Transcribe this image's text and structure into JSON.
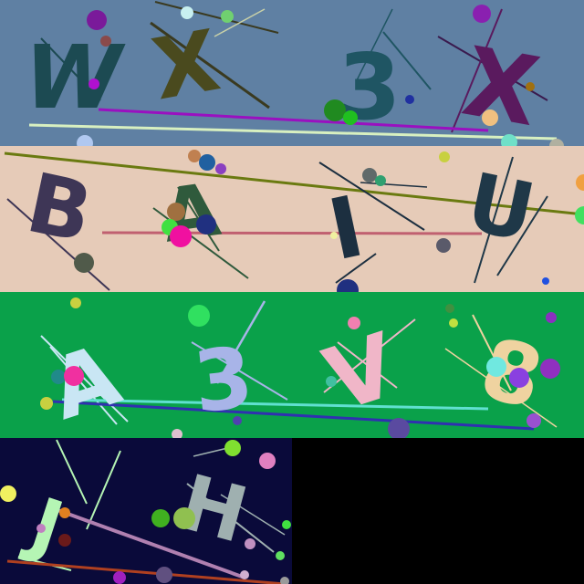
{
  "tiles": [
    {
      "background": "#5f80a3",
      "glyphs": [
        {
          "text": "W",
          "color": "#1c4a52"
        },
        {
          "text": "X",
          "color": "#4a4a1e"
        },
        {
          "text": "3",
          "color": "#1f5563"
        },
        {
          "text": "X",
          "color": "#5a1a5e"
        }
      ]
    },
    {
      "background": "#e6cbb8",
      "glyphs": [
        {
          "text": "B",
          "color": "#3e3656"
        },
        {
          "text": "A",
          "color": "#2f5a3c"
        },
        {
          "text": "I",
          "color": "#1c2f40"
        },
        {
          "text": "U",
          "color": "#1f3848"
        }
      ]
    },
    {
      "background": "#0aa14a",
      "glyphs": [
        {
          "text": "A",
          "color": "#c9e6f4"
        },
        {
          "text": "3",
          "color": "#a8b4e8"
        },
        {
          "text": "V",
          "color": "#f0b6c8"
        },
        {
          "text": "8",
          "color": "#efd3a0"
        }
      ]
    },
    {
      "background": "#0a0a3a",
      "glyphs": [
        {
          "text": "J",
          "color": "#b5f5b4"
        },
        {
          "text": "H",
          "color": "#9fb0b0"
        }
      ]
    }
  ]
}
